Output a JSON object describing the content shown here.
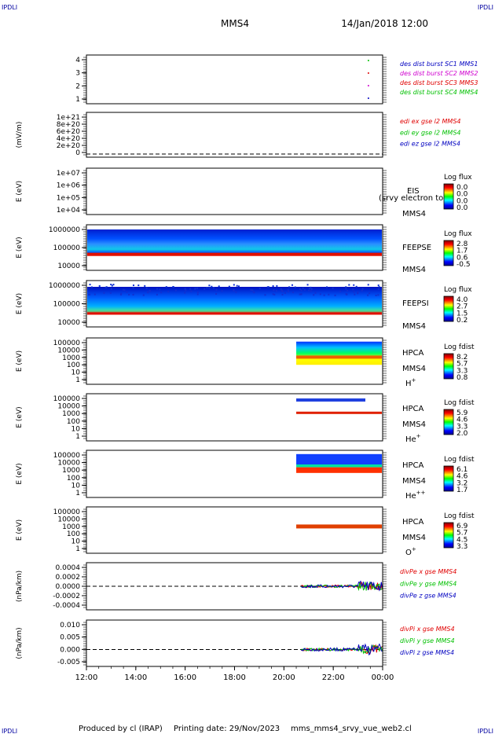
{
  "header": {
    "corner_left": "IPDLI",
    "corner_right": "IPDLI",
    "title": "MMS4",
    "date": "14/Jan/2018 12:00"
  },
  "footer": {
    "produced": "Produced by cl (IRAP)",
    "printing": "Printing date: 29/Nov/2023",
    "file": "mms_mms4_srvy_vue_web2.cl",
    "corner_left": "IPDLI",
    "corner_right": "IPDLI"
  },
  "colors": {
    "red": "#e00000",
    "magenta": "#d000d0",
    "green": "#00c000",
    "blue": "#0000c0"
  },
  "chart_data": {
    "type": "multi-panel",
    "x_ticks": [
      "12:00",
      "14:00",
      "16:00",
      "18:00",
      "20:00",
      "22:00",
      "00:00"
    ],
    "x_range_hours": [
      12,
      24
    ],
    "panels": [
      {
        "id": "burst",
        "ylabel": "",
        "yticks": [
          "4",
          "3",
          "2",
          "1"
        ],
        "legend": [
          {
            "text": "des dist burst SC1 MMS1",
            "color": "#0000c0"
          },
          {
            "text": "des dist burst SC2 MMS2",
            "color": "#d000d0"
          },
          {
            "text": "des dist burst SC3 MMS3",
            "color": "#e00000"
          },
          {
            "text": "des dist burst SC4 MMS4",
            "color": "#00c000"
          }
        ]
      },
      {
        "id": "edi",
        "ylabel": "(mV/m)",
        "yticks": [
          "1e+21",
          "8e+20",
          "6e+20",
          "4e+20",
          "2e+20",
          "0"
        ],
        "legend": [
          {
            "text": "edi ex gse l2 MMS4",
            "color": "#e00000"
          },
          {
            "text": "edi ey gse l2 MMS4",
            "color": "#00c000"
          },
          {
            "text": "edi ez gse l2 MMS4",
            "color": "#0000c0"
          }
        ]
      },
      {
        "id": "eis",
        "ylabel": "E (eV)",
        "yticks": [
          "1e+07",
          "1e+06",
          "1e+05",
          "1e+04"
        ],
        "instrument": "EIS",
        "overlay": "(srvy electron to",
        "spacecraft": "MMS4",
        "cbar_title": "Log flux",
        "cbar_ticks": [
          "0.0",
          "0.0",
          "0.0",
          "0.0"
        ]
      },
      {
        "id": "feepse",
        "ylabel": "E (eV)",
        "yticks": [
          "1000000",
          "100000",
          "10000"
        ],
        "instrument": "FEEPSE",
        "spacecraft": "MMS4",
        "cbar_title": "Log flux",
        "cbar_ticks": [
          "2.8",
          "1.7",
          "0.6",
          "-0.5"
        ]
      },
      {
        "id": "feepsi",
        "ylabel": "E (eV)",
        "yticks": [
          "1000000",
          "100000",
          "10000"
        ],
        "instrument": "FEEPSI",
        "spacecraft": "MMS4",
        "cbar_title": "Log flux",
        "cbar_ticks": [
          "4.0",
          "2.7",
          "1.5",
          "0.2"
        ]
      },
      {
        "id": "hpca_h",
        "ylabel": "E (eV)",
        "yticks": [
          "100000",
          "10000",
          "1000",
          "100",
          "10",
          "1"
        ],
        "instrument": "HPCA",
        "spacecraft": "MMS4",
        "species": "H",
        "charge": "+",
        "cbar_title": "Log fdist",
        "cbar_ticks": [
          "8.2",
          "5.7",
          "3.3",
          "0.8"
        ]
      },
      {
        "id": "hpca_he",
        "ylabel": "E (eV)",
        "yticks": [
          "100000",
          "10000",
          "1000",
          "100",
          "10",
          "1"
        ],
        "instrument": "HPCA",
        "spacecraft": "MMS4",
        "species": "He",
        "charge": "+",
        "cbar_title": "Log fdist",
        "cbar_ticks": [
          "5.9",
          "4.6",
          "3.3",
          "2.0"
        ]
      },
      {
        "id": "hpca_hepp",
        "ylabel": "E (eV)",
        "yticks": [
          "100000",
          "10000",
          "1000",
          "100",
          "10",
          "1"
        ],
        "instrument": "HPCA",
        "spacecraft": "MMS4",
        "species": "He",
        "charge": "++",
        "cbar_title": "Log fdist",
        "cbar_ticks": [
          "6.1",
          "4.6",
          "3.2",
          "1.7"
        ]
      },
      {
        "id": "hpca_o",
        "ylabel": "E (eV)",
        "yticks": [
          "100000",
          "10000",
          "1000",
          "100",
          "10",
          "1"
        ],
        "instrument": "HPCA",
        "spacecraft": "MMS4",
        "species": "O",
        "charge": "+",
        "cbar_title": "Log fdist",
        "cbar_ticks": [
          "6.9",
          "5.7",
          "4.5",
          "3.3"
        ]
      },
      {
        "id": "divpe",
        "ylabel": "(nPa/km)",
        "yticks": [
          "0.0004",
          "0.0002",
          "0.0000",
          "-0.0002",
          "-0.0004"
        ],
        "legend": [
          {
            "text": "divPe x gse MMS4",
            "color": "#e00000"
          },
          {
            "text": "divPe y gse MMS4",
            "color": "#00c000"
          },
          {
            "text": "divPe z gse MMS4",
            "color": "#0000c0"
          }
        ]
      },
      {
        "id": "divpi",
        "ylabel": "(nPa/km)",
        "yticks": [
          "0.010",
          "0.005",
          "0.000",
          "-0.005"
        ],
        "legend": [
          {
            "text": "divPi x gse MMS4",
            "color": "#e00000"
          },
          {
            "text": "divPi y gse MMS4",
            "color": "#00c000"
          },
          {
            "text": "divPi z gse MMS4",
            "color": "#0000c0"
          }
        ]
      }
    ]
  }
}
